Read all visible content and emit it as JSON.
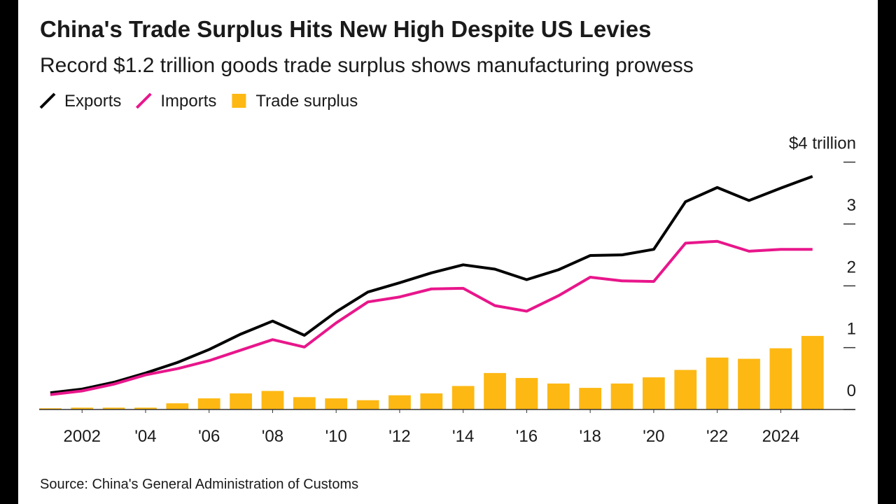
{
  "chart_data": {
    "type": "combo",
    "title": "China's Trade Surplus Hits New High Despite US Levies",
    "subtitle": "Record $1.2 trillion goods trade surplus shows manufacturing prowess",
    "source": "Source: China's General Administration of Customs",
    "x": [
      2001,
      2002,
      2003,
      2004,
      2005,
      2006,
      2007,
      2008,
      2009,
      2010,
      2011,
      2012,
      2013,
      2014,
      2015,
      2016,
      2017,
      2018,
      2019,
      2020,
      2021,
      2022,
      2023,
      2024,
      2025
    ],
    "series": [
      {
        "name": "Exports",
        "type": "line",
        "color": "#000000",
        "values": [
          0.27,
          0.33,
          0.44,
          0.59,
          0.76,
          0.97,
          1.22,
          1.43,
          1.2,
          1.58,
          1.9,
          2.05,
          2.21,
          2.34,
          2.27,
          2.1,
          2.26,
          2.49,
          2.5,
          2.59,
          3.36,
          3.59,
          3.38,
          3.58,
          3.77
        ]
      },
      {
        "name": "Imports",
        "type": "line",
        "color": "#e8168b",
        "values": [
          0.24,
          0.3,
          0.41,
          0.56,
          0.66,
          0.79,
          0.96,
          1.13,
          1.01,
          1.4,
          1.74,
          1.82,
          1.95,
          1.96,
          1.68,
          1.59,
          1.84,
          2.14,
          2.08,
          2.07,
          2.69,
          2.72,
          2.56,
          2.59,
          2.59
        ]
      },
      {
        "name": "Trade surplus",
        "type": "bar",
        "color": "#fdb813",
        "values": [
          0.02,
          0.03,
          0.03,
          0.03,
          0.1,
          0.18,
          0.26,
          0.3,
          0.2,
          0.18,
          0.15,
          0.23,
          0.26,
          0.38,
          0.59,
          0.51,
          0.42,
          0.35,
          0.42,
          0.52,
          0.64,
          0.84,
          0.82,
          0.99,
          1.19
        ]
      }
    ],
    "xlim": [
      2000.65,
      2026.35
    ],
    "xticks": [
      {
        "value": 2002,
        "label": "2002"
      },
      {
        "value": 2004,
        "label": "'04"
      },
      {
        "value": 2006,
        "label": "'06"
      },
      {
        "value": 2008,
        "label": "'08"
      },
      {
        "value": 2010,
        "label": "'10"
      },
      {
        "value": 2012,
        "label": "'12"
      },
      {
        "value": 2014,
        "label": "'14"
      },
      {
        "value": 2016,
        "label": "'16"
      },
      {
        "value": 2018,
        "label": "'18"
      },
      {
        "value": 2020,
        "label": "'20"
      },
      {
        "value": 2022,
        "label": "'22"
      },
      {
        "value": 2024,
        "label": "2024"
      }
    ],
    "ylim": [
      0,
      4.2
    ],
    "yticks": [
      0,
      1,
      2,
      3,
      {
        "value": 4,
        "label": "$4 trillion"
      }
    ]
  }
}
